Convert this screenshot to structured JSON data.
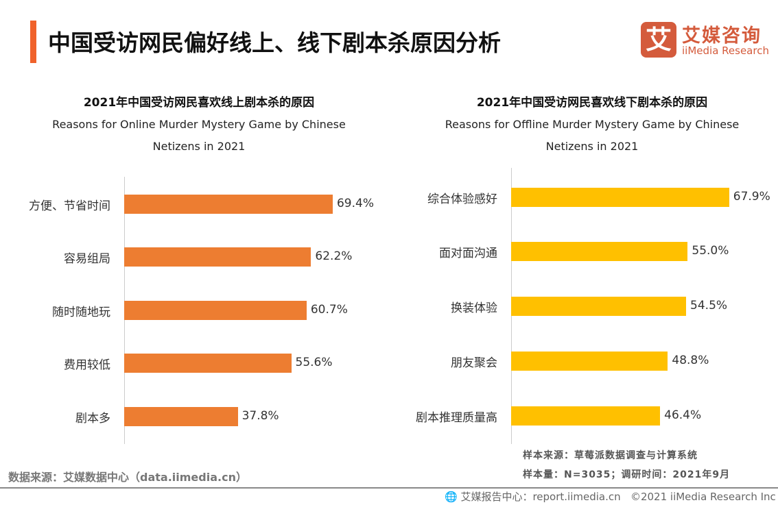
{
  "header": {
    "title": "中国受访网民偏好线上、线下剧本杀原因分析",
    "logo_mark": "艾",
    "logo_cn": "艾媒咨询",
    "logo_en": "iiMedia Research"
  },
  "colors": {
    "accent": "#F0622B",
    "online_bar": "#ED7D31",
    "offline_bar": "#FFC000",
    "logo": "#D45B3C"
  },
  "chart_data": [
    {
      "type": "bar",
      "orientation": "horizontal",
      "title": "2021年中国受访网民喜欢线上剧本杀的原因",
      "subtitle": "Reasons for Online Murder Mystery Game by Chinese Netizens in 2021",
      "categories": [
        "方便、节省时间",
        "容易组局",
        "随时随地玩",
        "费用较低",
        "剧本多"
      ],
      "values": [
        69.4,
        62.2,
        60.7,
        55.6,
        37.8
      ],
      "labels": [
        "69.4%",
        "62.2%",
        "60.7%",
        "55.6%",
        "37.8%"
      ],
      "unit": "%"
    },
    {
      "type": "bar",
      "orientation": "horizontal",
      "title": "2021年中国受访网民喜欢线下剧本杀的原因",
      "subtitle": "Reasons for Offline Murder Mystery Game by Chinese Netizens in 2021",
      "categories": [
        "综合体验感好",
        "面对面沟通",
        "换装体验",
        "朋友聚会",
        "剧本推理质量高"
      ],
      "values": [
        67.9,
        55.0,
        54.5,
        48.8,
        46.4
      ],
      "labels": [
        "67.9%",
        "55.0%",
        "54.5%",
        "48.8%",
        "46.4%"
      ],
      "unit": "%"
    }
  ],
  "footer": {
    "source": "数据来源：艾媒数据中心（data.iimedia.cn）",
    "sample_source": "样本来源：草莓派数据调查与计算系统",
    "sample_size": "样本量：N=3035；调研时间：2021年9月",
    "report_center": "艾媒报告中心：report.iimedia.cn",
    "copyright": "©2021  iiMedia Research  Inc"
  }
}
